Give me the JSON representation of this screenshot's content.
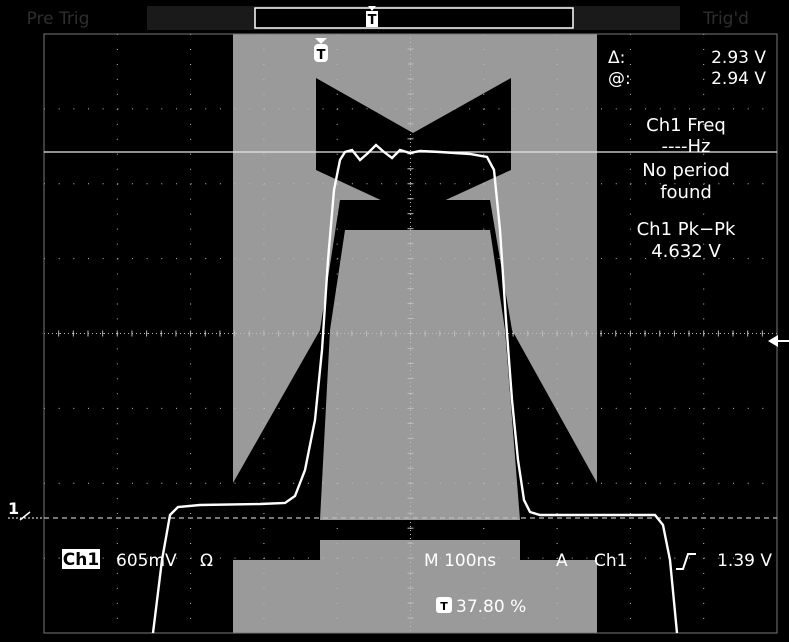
{
  "top_bar": {
    "left_status": "Pre Trig",
    "right_status": "Trig'd",
    "trigger_marker": "T"
  },
  "trigger": {
    "marker": "T"
  },
  "cursor_readout": {
    "delta_label": "Δ:",
    "delta_value": "2.93 V",
    "at_label": "@:",
    "at_value": "2.94 V"
  },
  "measurements": {
    "freq_title": "Ch1 Freq",
    "freq_value": "----Hz",
    "freq_note_line1": "No period",
    "freq_note_line2": "found",
    "pkpk_title": "Ch1 Pk−Pk",
    "pkpk_value": "4.632 V"
  },
  "channel": {
    "marker": "1",
    "badge": "Ch1",
    "scale": "605mV",
    "coupling_symbol": "Ω"
  },
  "timebase": {
    "label": "M 100ns",
    "trigger_mode": "A",
    "trigger_source": "Ch1",
    "trigger_slope_icon": "rising-edge-icon",
    "trigger_level": "1.39 V",
    "position_marker": "T",
    "position_value": "37.80 %"
  },
  "colors": {
    "background": "#000000",
    "mask_fill": "#9a9a9a",
    "trace": "#ffffff",
    "grid": "#bdbdbd",
    "text": "#ffffff",
    "status_text": "#7a7a7a"
  }
}
